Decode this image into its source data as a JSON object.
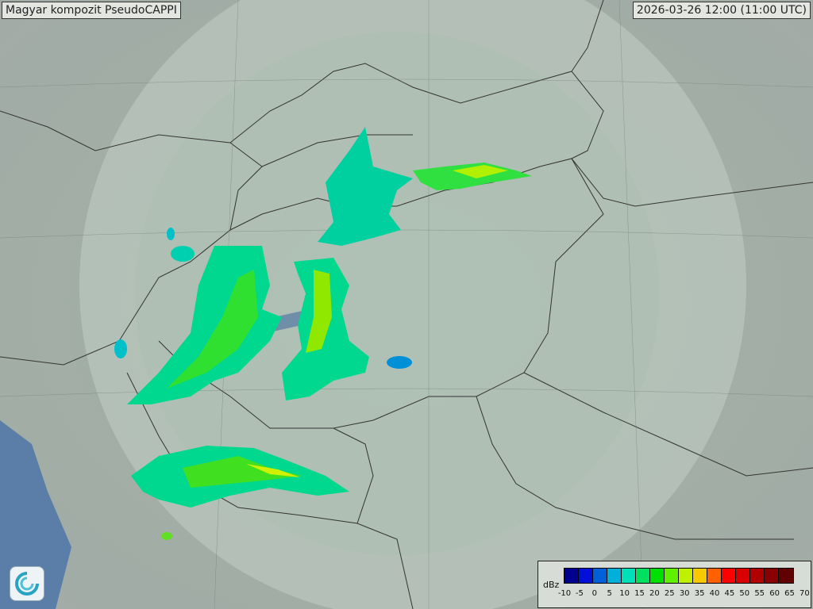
{
  "title": "Magyar kompozit  PseudoCAPPI",
  "timestamp": "2026-03-26 12:00 (11:00 UTC)",
  "legend": {
    "unit": "dBz",
    "ticks": [
      "-10",
      "-5",
      "0",
      "5",
      "10",
      "15",
      "20",
      "25",
      "30",
      "35",
      "40",
      "45",
      "50",
      "55",
      "60",
      "65",
      "70"
    ],
    "colors": [
      "#000090",
      "#0010d8",
      "#0060d8",
      "#00b0d8",
      "#00e0b8",
      "#00e060",
      "#00e000",
      "#60f000",
      "#c0f000",
      "#f8c800",
      "#ff6000",
      "#ff0000",
      "#d80000",
      "#b00000",
      "#880000",
      "#600000"
    ]
  },
  "logo_icon": "omsz-swirl-icon"
}
